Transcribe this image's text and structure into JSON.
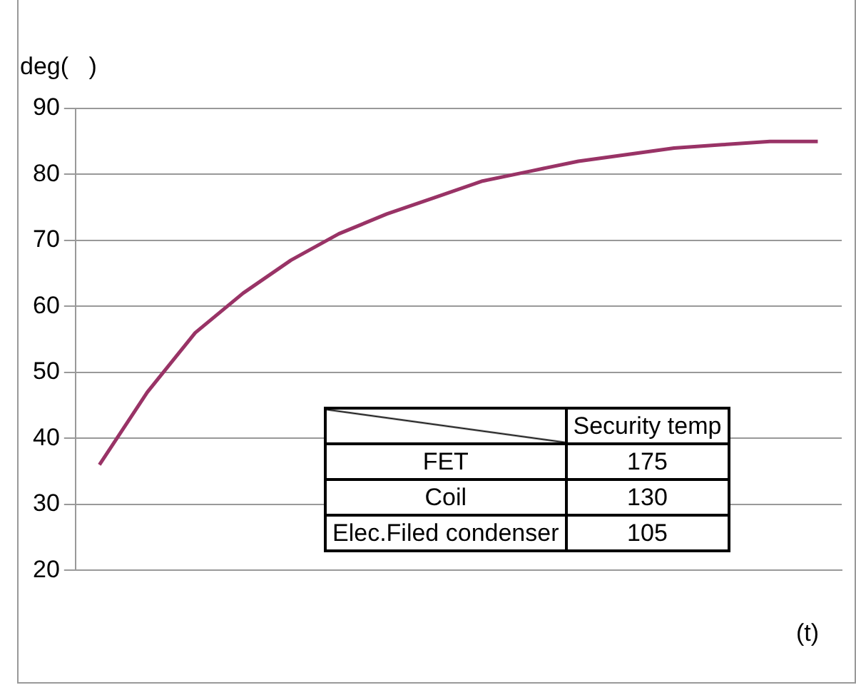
{
  "chart_data": {
    "type": "line",
    "ylabel": "deg(   )",
    "xlabel": "(t)",
    "categories": [
      null,
      null,
      null,
      null,
      null,
      null,
      null,
      null,
      null,
      null,
      null,
      null,
      null,
      null,
      null,
      null
    ],
    "series": [
      {
        "color": "#993366",
        "values": [
          36,
          47,
          56,
          62,
          67,
          71,
          74,
          76.5,
          79,
          80.5,
          82,
          83,
          84,
          84.5,
          85,
          85
        ]
      }
    ],
    "ylim": [
      20,
      90
    ],
    "yticks": [
      20,
      30,
      40,
      50,
      60,
      70,
      80,
      90
    ],
    "grid": "y",
    "legend": false,
    "marker": "none",
    "line_style": "solid",
    "annotations": [
      "Security temp",
      "FET",
      "175",
      "Coil",
      "130",
      "Elec.Filed condenser",
      "105"
    ]
  }
}
